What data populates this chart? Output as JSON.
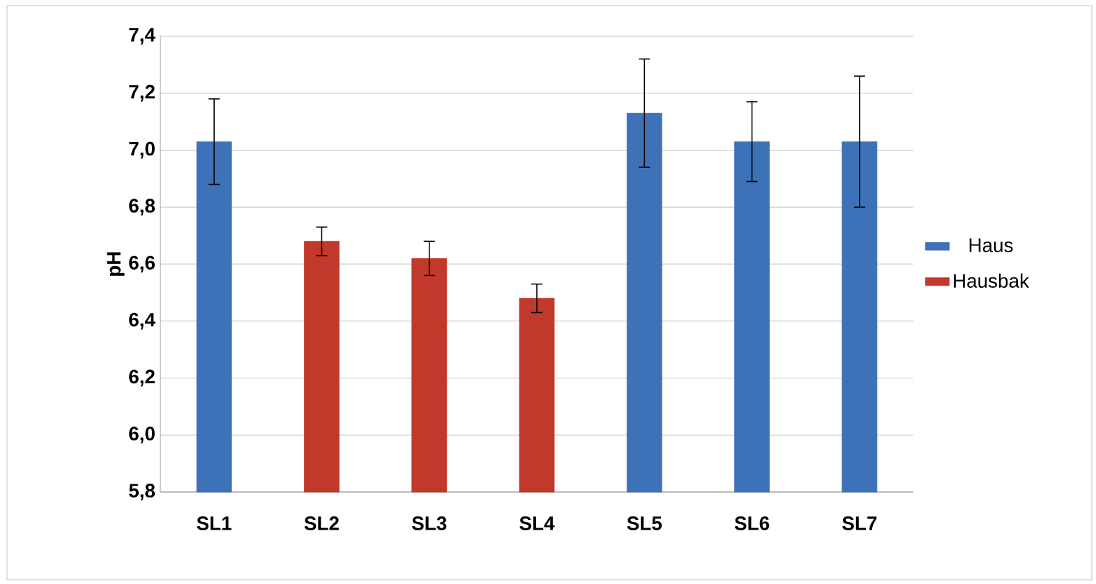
{
  "chart_data": {
    "type": "bar",
    "ylabel": "pH",
    "categories": [
      "SL1",
      "SL2",
      "SL3",
      "SL4",
      "SL5",
      "SL6",
      "SL7"
    ],
    "series": [
      {
        "name": "Haus",
        "color": "#3d72b8",
        "values": [
          7.03,
          null,
          null,
          null,
          7.13,
          7.03,
          7.03
        ],
        "errors": [
          0.15,
          null,
          null,
          null,
          0.19,
          0.14,
          0.23
        ]
      },
      {
        "name": "Hausbak",
        "color": "#c0392b",
        "values": [
          null,
          6.68,
          6.62,
          6.48,
          null,
          null,
          null
        ],
        "errors": [
          null,
          0.05,
          0.06,
          0.05,
          null,
          null,
          null
        ]
      }
    ],
    "ylim": [
      5.8,
      7.4
    ],
    "yticks": [
      {
        "value": 5.8,
        "label": "5,8"
      },
      {
        "value": 6.0,
        "label": "6,0"
      },
      {
        "value": 6.2,
        "label": "6,2"
      },
      {
        "value": 6.4,
        "label": "6,4"
      },
      {
        "value": 6.6,
        "label": "6,6"
      },
      {
        "value": 6.8,
        "label": "6,8"
      },
      {
        "value": 7.0,
        "label": "7,0"
      },
      {
        "value": 7.2,
        "label": "7,2"
      },
      {
        "value": 7.4,
        "label": "7,4"
      }
    ],
    "grid": "y",
    "legend": "right"
  }
}
